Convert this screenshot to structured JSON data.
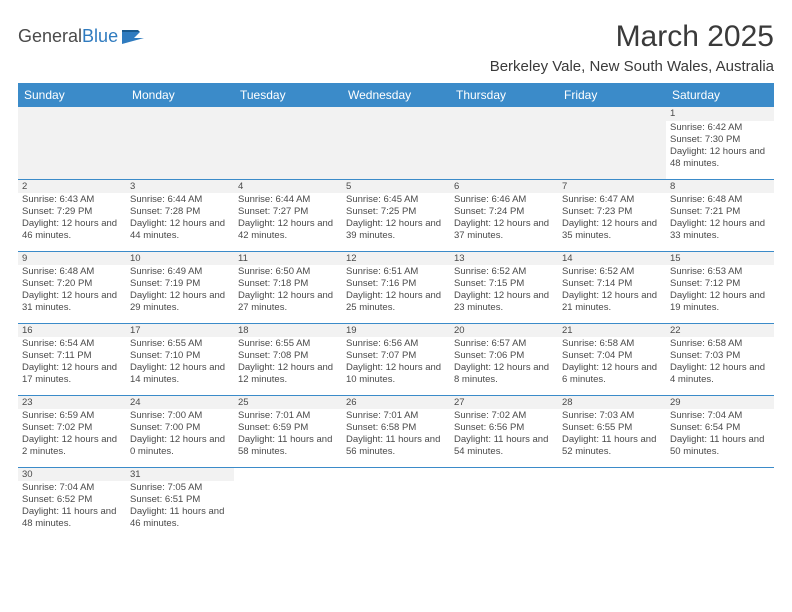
{
  "logo": {
    "text1": "General",
    "text2": "Blue"
  },
  "header": {
    "month_title": "March 2025",
    "location": "Berkeley Vale, New South Wales, Australia"
  },
  "weekdays": [
    "Sunday",
    "Monday",
    "Tuesday",
    "Wednesday",
    "Thursday",
    "Friday",
    "Saturday"
  ],
  "colors": {
    "header_bg": "#3b8bc9",
    "header_text": "#ffffff",
    "grid_line": "#3b8bc9",
    "daynum_bg": "#f2f2f2",
    "text": "#4a4a4a"
  },
  "typography": {
    "title_fontsize": 30,
    "location_fontsize": 15,
    "weekday_fontsize": 12,
    "cell_fontsize": 9.5
  },
  "days": {
    "1": {
      "sunrise": "6:42 AM",
      "sunset": "7:30 PM",
      "daylight": "12 hours and 48 minutes."
    },
    "2": {
      "sunrise": "6:43 AM",
      "sunset": "7:29 PM",
      "daylight": "12 hours and 46 minutes."
    },
    "3": {
      "sunrise": "6:44 AM",
      "sunset": "7:28 PM",
      "daylight": "12 hours and 44 minutes."
    },
    "4": {
      "sunrise": "6:44 AM",
      "sunset": "7:27 PM",
      "daylight": "12 hours and 42 minutes."
    },
    "5": {
      "sunrise": "6:45 AM",
      "sunset": "7:25 PM",
      "daylight": "12 hours and 39 minutes."
    },
    "6": {
      "sunrise": "6:46 AM",
      "sunset": "7:24 PM",
      "daylight": "12 hours and 37 minutes."
    },
    "7": {
      "sunrise": "6:47 AM",
      "sunset": "7:23 PM",
      "daylight": "12 hours and 35 minutes."
    },
    "8": {
      "sunrise": "6:48 AM",
      "sunset": "7:21 PM",
      "daylight": "12 hours and 33 minutes."
    },
    "9": {
      "sunrise": "6:48 AM",
      "sunset": "7:20 PM",
      "daylight": "12 hours and 31 minutes."
    },
    "10": {
      "sunrise": "6:49 AM",
      "sunset": "7:19 PM",
      "daylight": "12 hours and 29 minutes."
    },
    "11": {
      "sunrise": "6:50 AM",
      "sunset": "7:18 PM",
      "daylight": "12 hours and 27 minutes."
    },
    "12": {
      "sunrise": "6:51 AM",
      "sunset": "7:16 PM",
      "daylight": "12 hours and 25 minutes."
    },
    "13": {
      "sunrise": "6:52 AM",
      "sunset": "7:15 PM",
      "daylight": "12 hours and 23 minutes."
    },
    "14": {
      "sunrise": "6:52 AM",
      "sunset": "7:14 PM",
      "daylight": "12 hours and 21 minutes."
    },
    "15": {
      "sunrise": "6:53 AM",
      "sunset": "7:12 PM",
      "daylight": "12 hours and 19 minutes."
    },
    "16": {
      "sunrise": "6:54 AM",
      "sunset": "7:11 PM",
      "daylight": "12 hours and 17 minutes."
    },
    "17": {
      "sunrise": "6:55 AM",
      "sunset": "7:10 PM",
      "daylight": "12 hours and 14 minutes."
    },
    "18": {
      "sunrise": "6:55 AM",
      "sunset": "7:08 PM",
      "daylight": "12 hours and 12 minutes."
    },
    "19": {
      "sunrise": "6:56 AM",
      "sunset": "7:07 PM",
      "daylight": "12 hours and 10 minutes."
    },
    "20": {
      "sunrise": "6:57 AM",
      "sunset": "7:06 PM",
      "daylight": "12 hours and 8 minutes."
    },
    "21": {
      "sunrise": "6:58 AM",
      "sunset": "7:04 PM",
      "daylight": "12 hours and 6 minutes."
    },
    "22": {
      "sunrise": "6:58 AM",
      "sunset": "7:03 PM",
      "daylight": "12 hours and 4 minutes."
    },
    "23": {
      "sunrise": "6:59 AM",
      "sunset": "7:02 PM",
      "daylight": "12 hours and 2 minutes."
    },
    "24": {
      "sunrise": "7:00 AM",
      "sunset": "7:00 PM",
      "daylight": "12 hours and 0 minutes."
    },
    "25": {
      "sunrise": "7:01 AM",
      "sunset": "6:59 PM",
      "daylight": "11 hours and 58 minutes."
    },
    "26": {
      "sunrise": "7:01 AM",
      "sunset": "6:58 PM",
      "daylight": "11 hours and 56 minutes."
    },
    "27": {
      "sunrise": "7:02 AM",
      "sunset": "6:56 PM",
      "daylight": "11 hours and 54 minutes."
    },
    "28": {
      "sunrise": "7:03 AM",
      "sunset": "6:55 PM",
      "daylight": "11 hours and 52 minutes."
    },
    "29": {
      "sunrise": "7:04 AM",
      "sunset": "6:54 PM",
      "daylight": "11 hours and 50 minutes."
    },
    "30": {
      "sunrise": "7:04 AM",
      "sunset": "6:52 PM",
      "daylight": "11 hours and 48 minutes."
    },
    "31": {
      "sunrise": "7:05 AM",
      "sunset": "6:51 PM",
      "daylight": "11 hours and 46 minutes."
    }
  },
  "labels": {
    "sunrise_prefix": "Sunrise: ",
    "sunset_prefix": "Sunset: ",
    "daylight_prefix": "Daylight: "
  },
  "layout": {
    "first_day_column": 6,
    "rows": [
      [
        null,
        null,
        null,
        null,
        null,
        null,
        "1"
      ],
      [
        "2",
        "3",
        "4",
        "5",
        "6",
        "7",
        "8"
      ],
      [
        "9",
        "10",
        "11",
        "12",
        "13",
        "14",
        "15"
      ],
      [
        "16",
        "17",
        "18",
        "19",
        "20",
        "21",
        "22"
      ],
      [
        "23",
        "24",
        "25",
        "26",
        "27",
        "28",
        "29"
      ],
      [
        "30",
        "31",
        null,
        null,
        null,
        null,
        null
      ]
    ]
  }
}
